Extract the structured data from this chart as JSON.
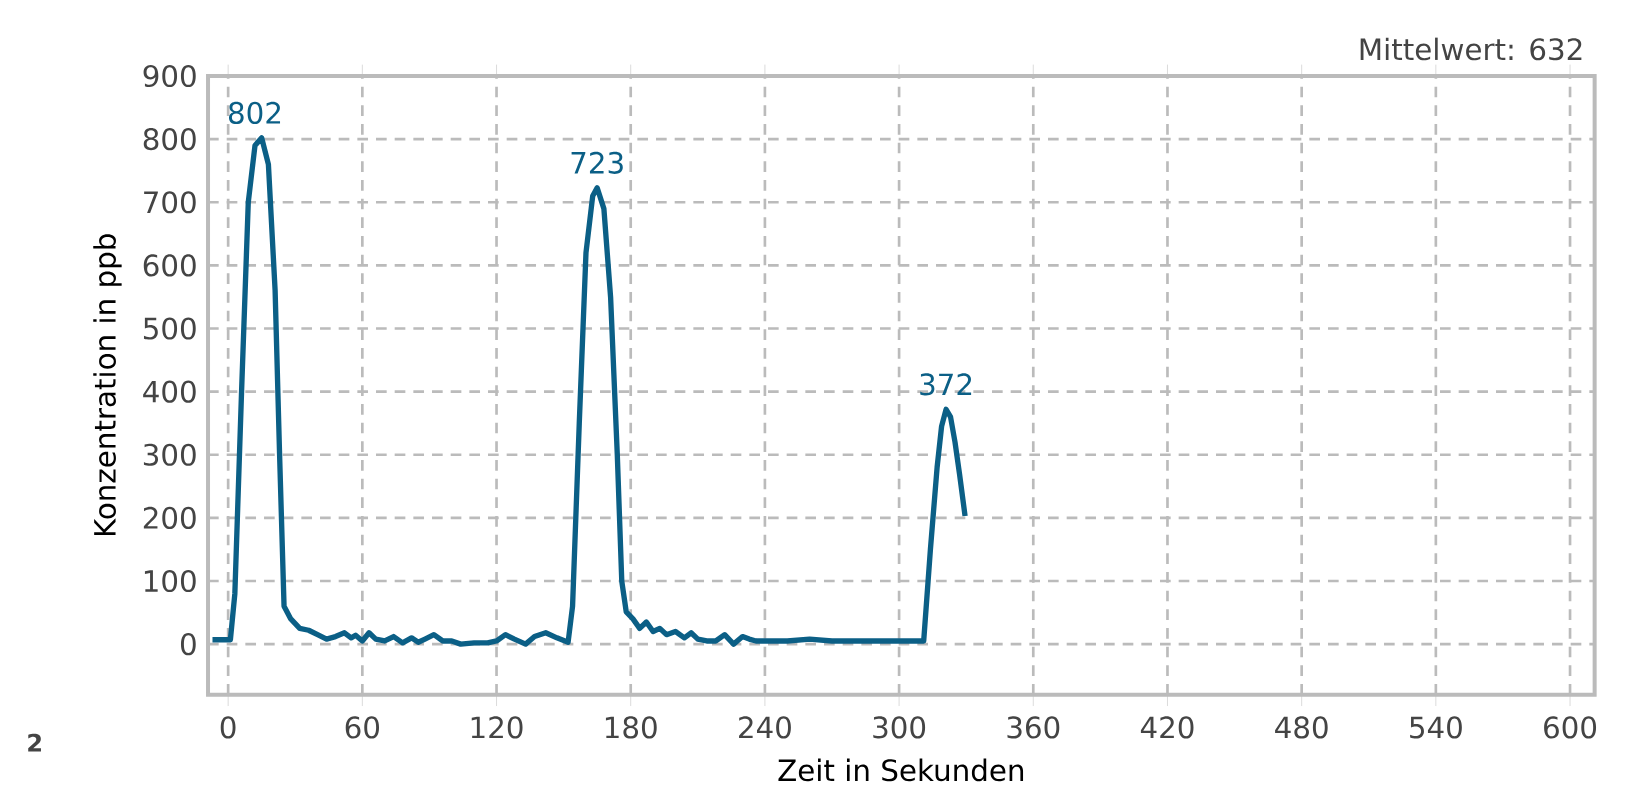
{
  "chart_data": {
    "type": "line",
    "xlabel": "Zeit in Sekunden",
    "ylabel": "Konzentration in ppb",
    "xlim": [
      -9,
      611
    ],
    "ylim": [
      -80,
      900
    ],
    "xticks": [
      0,
      60,
      120,
      180,
      240,
      300,
      360,
      420,
      480,
      540,
      600
    ],
    "yticks": [
      0,
      100,
      200,
      300,
      400,
      500,
      600,
      700,
      800,
      900
    ],
    "grid": true,
    "line_style": "solid",
    "marker": "none",
    "series": [
      {
        "color": "#0b5f86",
        "x": [
          -7,
          1,
          3,
          6,
          9,
          12,
          15,
          18,
          21,
          23,
          25,
          28,
          32,
          36,
          40,
          44,
          48,
          52,
          55,
          57,
          60,
          63,
          66,
          70,
          74,
          78,
          82,
          85,
          88,
          92,
          96,
          100,
          104,
          110,
          116,
          120,
          124,
          128,
          133,
          137,
          142,
          147,
          152,
          154,
          157,
          160,
          163,
          165,
          168,
          171,
          174,
          176,
          178,
          181,
          184,
          187,
          190,
          193,
          196,
          200,
          204,
          207,
          210,
          214,
          218,
          222,
          226,
          230,
          233,
          236,
          240,
          245,
          250,
          260,
          270,
          280,
          290,
          300,
          311,
          314,
          317,
          319,
          321,
          323,
          325,
          327,
          329.5
        ],
        "values": [
          7,
          7,
          80,
          400,
          700,
          790,
          802,
          760,
          560,
          300,
          60,
          40,
          25,
          22,
          15,
          8,
          12,
          18,
          10,
          14,
          5,
          18,
          8,
          5,
          12,
          2,
          10,
          3,
          8,
          15,
          5,
          5,
          0,
          2,
          2,
          5,
          15,
          8,
          0,
          12,
          18,
          10,
          3,
          60,
          350,
          620,
          710,
          723,
          690,
          550,
          300,
          100,
          51,
          40,
          25,
          35,
          20,
          25,
          15,
          20,
          10,
          18,
          8,
          5,
          5,
          15,
          0,
          12,
          8,
          5,
          5,
          5,
          5,
          8,
          5,
          5,
          5,
          5,
          5,
          150,
          280,
          345,
          372,
          360,
          320,
          270,
          203
        ]
      }
    ],
    "annotations": [
      {
        "text": "802",
        "x": 12,
        "y": 802
      },
      {
        "text": "723",
        "x": 165,
        "y": 723
      },
      {
        "text": "372",
        "x": 321,
        "y": 372
      },
      "Mittelwert: 632",
      "2"
    ]
  }
}
